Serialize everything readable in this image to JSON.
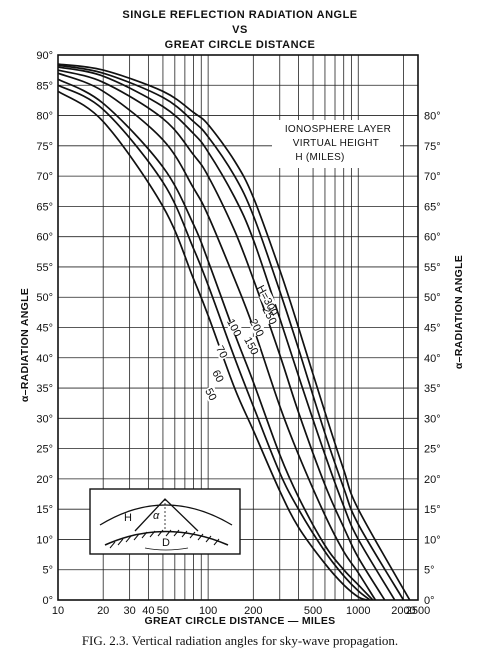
{
  "chart_data": {
    "type": "line",
    "title": [
      "SINGLE REFLECTION RADIATION ANGLE",
      "VS",
      "GREAT CIRCLE DISTANCE"
    ],
    "xlabel": "GREAT CIRCLE DISTANCE — MILES",
    "ylabel_left": "α–RADIATION ANGLE",
    "ylabel_right": "α–RADIATION ANGLE",
    "x_scale": "log",
    "xlim": [
      10,
      2500
    ],
    "ylim": [
      0,
      90
    ],
    "x_ticks": [
      {
        "value": 10,
        "label": "10"
      },
      {
        "value": 20,
        "label": "20"
      },
      {
        "value": 30,
        "label": "30"
      },
      {
        "value": 40,
        "label": "40"
      },
      {
        "value": 50,
        "label": "50"
      },
      {
        "value": 100,
        "label": "100"
      },
      {
        "value": 200,
        "label": "200"
      },
      {
        "value": 500,
        "label": "500"
      },
      {
        "value": 1000,
        "label": "1000"
      },
      {
        "value": 2000,
        "label": "2000"
      },
      {
        "value": 2500,
        "label": "2500"
      }
    ],
    "x_grid": [
      10,
      20,
      30,
      40,
      50,
      60,
      70,
      80,
      90,
      100,
      200,
      300,
      400,
      500,
      600,
      700,
      800,
      900,
      1000,
      2000
    ],
    "y_ticks_left": [
      "0°",
      "5°",
      "10°",
      "15°",
      "20°",
      "25°",
      "30°",
      "35°",
      "40°",
      "45°",
      "50°",
      "55°",
      "60°",
      "65°",
      "70°",
      "75°",
      "80°",
      "85°",
      "90°"
    ],
    "y_ticks_right": [
      "0°",
      "5°",
      "10°",
      "15°",
      "20°",
      "25°",
      "30°",
      "35°",
      "40°",
      "45°",
      "50°",
      "55°",
      "60°",
      "65°",
      "70°",
      "75°",
      "80°"
    ],
    "y_grid_step": 5,
    "grid": true,
    "legend_title": [
      "IONOSPHERE LAYER",
      "VIRTUAL HEIGHT",
      "H (MILES)"
    ],
    "series": [
      {
        "name": "50",
        "x": [
          10,
          20,
          50,
          80,
          100,
          150,
          200,
          300,
          400,
          600,
          800,
          1000,
          1150
        ],
        "y": [
          84,
          79,
          65,
          53,
          47,
          35,
          28,
          18,
          12,
          6,
          2.5,
          0.5,
          0
        ]
      },
      {
        "name": "60",
        "x": [
          10,
          20,
          50,
          80,
          100,
          150,
          200,
          300,
          400,
          600,
          800,
          1000,
          1200
        ],
        "y": [
          85,
          81,
          69,
          58,
          52,
          40,
          32,
          21,
          15,
          8,
          4,
          1.5,
          0
        ]
      },
      {
        "name": "70",
        "x": [
          10,
          20,
          50,
          80,
          100,
          150,
          200,
          300,
          400,
          600,
          800,
          1000,
          1250
        ],
        "y": [
          86,
          82,
          71.5,
          62,
          56,
          44,
          36,
          24,
          17,
          9,
          5,
          2.5,
          0
        ]
      },
      {
        "name": "100",
        "x": [
          10,
          20,
          50,
          80,
          100,
          150,
          200,
          300,
          400,
          600,
          800,
          1000,
          1300
        ],
        "y": [
          87,
          84,
          76,
          68,
          63.5,
          53,
          45,
          32,
          24,
          14,
          8,
          4.5,
          0
        ]
      },
      {
        "name": "150",
        "x": [
          10,
          20,
          50,
          80,
          100,
          150,
          200,
          300,
          400,
          600,
          800,
          1000,
          1500
        ],
        "y": [
          87.5,
          85.5,
          79.5,
          73.5,
          70,
          61,
          53,
          40.5,
          31,
          19,
          12,
          7,
          0
        ]
      },
      {
        "name": "200",
        "x": [
          10,
          20,
          50,
          80,
          100,
          150,
          200,
          300,
          400,
          600,
          800,
          1000,
          1750
        ],
        "y": [
          88,
          86.5,
          81.5,
          77,
          74,
          66.5,
          59.5,
          46.5,
          37,
          24,
          15.5,
          10,
          0
        ]
      },
      {
        "name": "250",
        "x": [
          10,
          20,
          50,
          80,
          100,
          150,
          200,
          300,
          400,
          600,
          800,
          1000,
          2000
        ],
        "y": [
          88.3,
          87,
          83,
          79,
          76.5,
          70,
          63.5,
          51,
          41.5,
          27.5,
          18.5,
          12.5,
          0
        ]
      },
      {
        "name": "H=300",
        "x": [
          10,
          20,
          50,
          80,
          100,
          150,
          200,
          300,
          400,
          600,
          800,
          1000,
          2200
        ],
        "y": [
          88.5,
          87.5,
          84,
          80.5,
          78.5,
          72.5,
          66.5,
          54.5,
          45,
          31,
          21.5,
          15,
          0
        ]
      }
    ],
    "inset_labels": [
      "H",
      "α",
      "D"
    ]
  },
  "caption": "FIG. 2.3.   Vertical radiation angles for sky-wave propagation.",
  "colors": {
    "ink": "#111111",
    "paper": "#ffffff"
  }
}
